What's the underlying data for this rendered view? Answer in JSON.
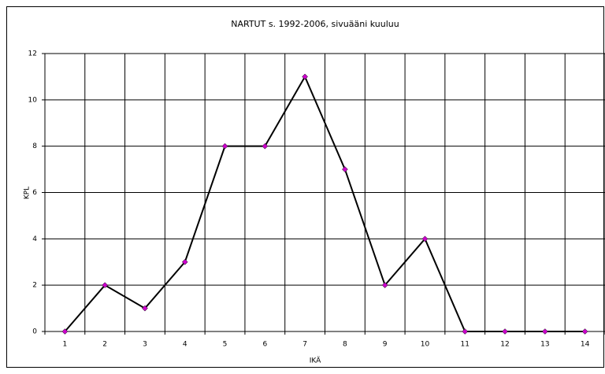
{
  "chart_data": {
    "type": "line",
    "title": "NARTUT s. 1992-2006, sivuääni kuuluu",
    "x_label": "IKÄ",
    "y_label": "KPL",
    "categories": [
      "1",
      "2",
      "3",
      "4",
      "5",
      "6",
      "7",
      "8",
      "9",
      "10",
      "11",
      "12",
      "13",
      "14"
    ],
    "series": [
      {
        "name": "NARTUT",
        "color": "#000000",
        "marker_color": "#cc00cc",
        "values": [
          0,
          2,
          1,
          3,
          8,
          8,
          11,
          7,
          2,
          4,
          0,
          0,
          0,
          0
        ]
      }
    ],
    "ylim": [
      0,
      12
    ],
    "yticks": [
      0,
      2,
      4,
      6,
      8,
      10,
      12
    ],
    "grid": true
  }
}
